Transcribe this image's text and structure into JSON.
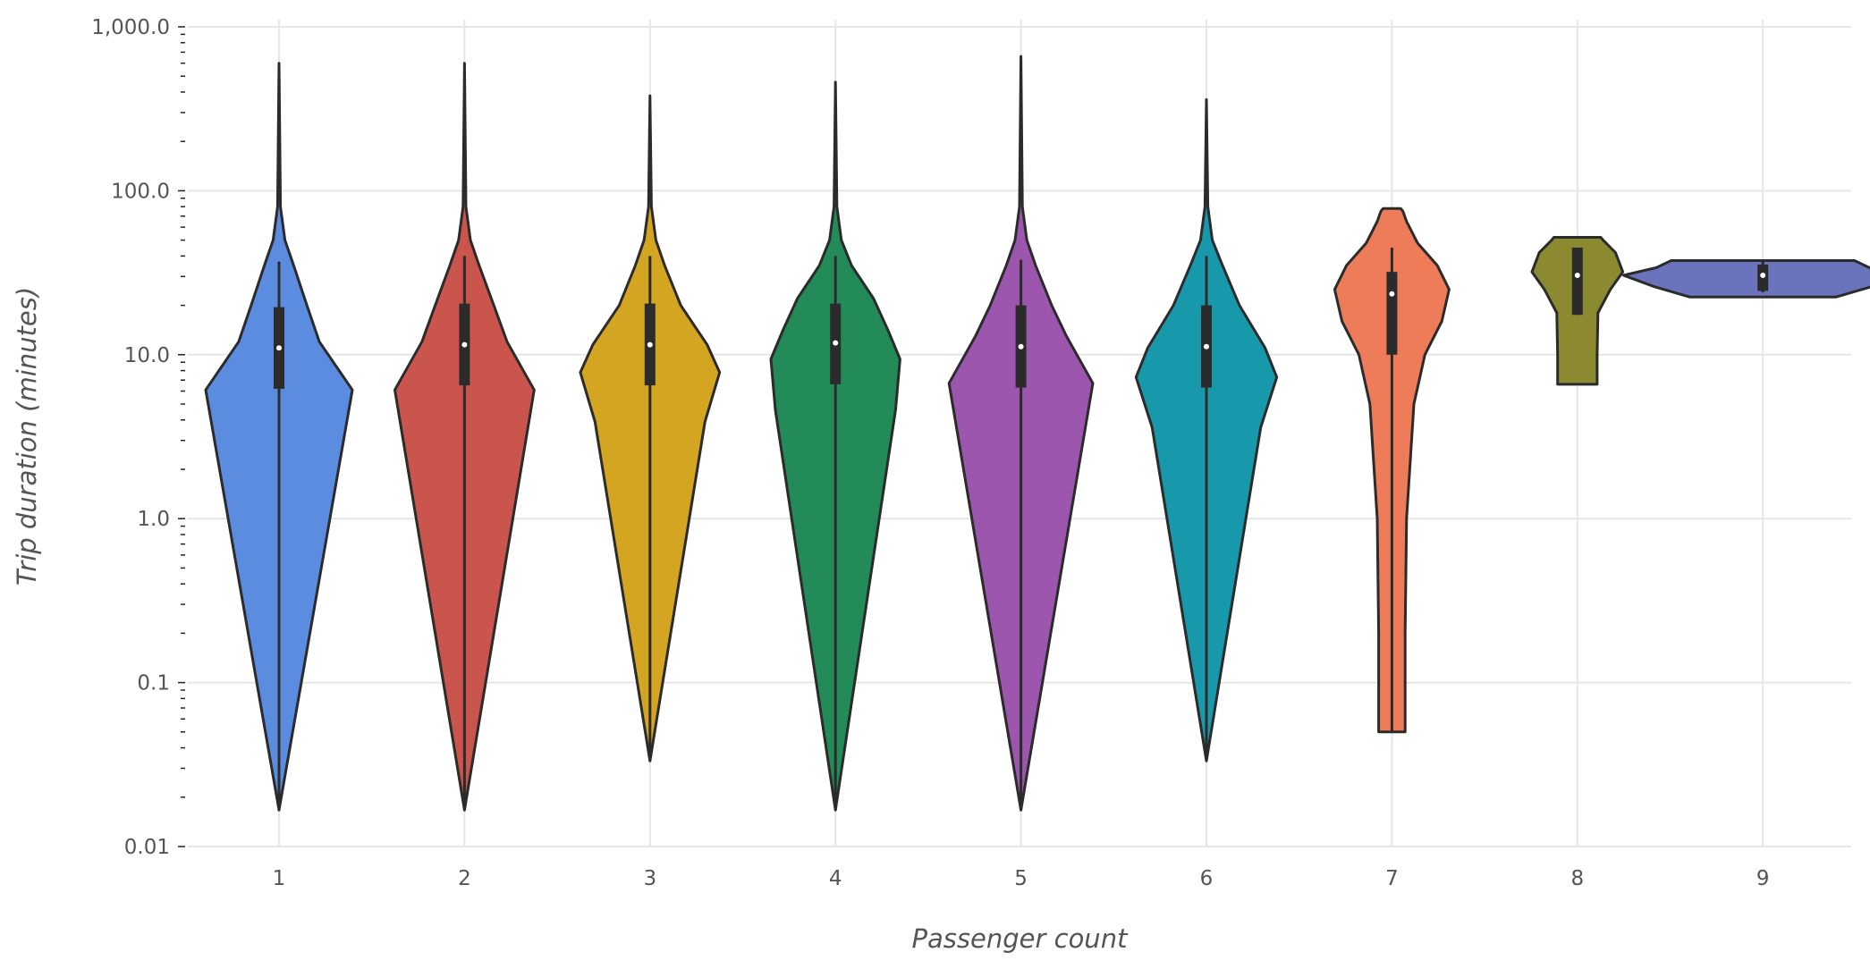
{
  "chart_data": {
    "type": "violin",
    "title": "",
    "xlabel": "Passenger count",
    "ylabel": "Trip duration (minutes)",
    "y_scale": "log",
    "ylim": [
      0.01,
      1000
    ],
    "y_ticks": [
      0.01,
      0.1,
      1,
      10,
      100,
      1000
    ],
    "y_tick_labels": [
      "0.01",
      "0.1",
      "1.0",
      "10.0",
      "100.0",
      "1,000.0"
    ],
    "grid": true,
    "categories": [
      "1",
      "2",
      "3",
      "4",
      "5",
      "6",
      "7",
      "8",
      "9"
    ],
    "colors": [
      "#5b8ce0",
      "#c9554c",
      "#d4a520",
      "#228b57",
      "#9c56ad",
      "#1899ab",
      "#ef7c58",
      "#8c8a30",
      "#6a73bc"
    ],
    "violins": [
      {
        "category": "1",
        "min": 0.0167,
        "q1": 6.2,
        "median": 11.0,
        "q3": 19.5,
        "whisker_low": 0.0167,
        "whisker_high": 37,
        "max": 600,
        "profile": [
          [
            0.0167,
            0.0
          ],
          [
            6.1,
            1.0
          ],
          [
            12,
            0.55
          ],
          [
            20,
            0.38
          ],
          [
            35,
            0.2
          ],
          [
            50,
            0.08
          ],
          [
            80,
            0.02
          ],
          [
            600,
            0.0
          ]
        ]
      },
      {
        "category": "2",
        "min": 0.0167,
        "q1": 6.5,
        "median": 11.5,
        "q3": 20.5,
        "whisker_low": 0.0167,
        "whisker_high": 40,
        "max": 600,
        "profile": [
          [
            0.0167,
            0.0
          ],
          [
            6.1,
            0.95
          ],
          [
            12,
            0.58
          ],
          [
            20,
            0.4
          ],
          [
            35,
            0.2
          ],
          [
            50,
            0.08
          ],
          [
            80,
            0.02
          ],
          [
            600,
            0.0
          ]
        ]
      },
      {
        "category": "3",
        "min": 0.0333,
        "q1": 6.5,
        "median": 11.5,
        "q3": 20.5,
        "whisker_low": 0.0333,
        "whisker_high": 40,
        "max": 380,
        "profile": [
          [
            0.0333,
            0.0
          ],
          [
            3.9,
            0.75
          ],
          [
            7.8,
            0.95
          ],
          [
            11.5,
            0.78
          ],
          [
            20,
            0.42
          ],
          [
            35,
            0.2
          ],
          [
            50,
            0.08
          ],
          [
            80,
            0.02
          ],
          [
            380,
            0.0
          ]
        ]
      },
      {
        "category": "4",
        "min": 0.0167,
        "q1": 6.6,
        "median": 11.8,
        "q3": 20.5,
        "whisker_low": 0.0167,
        "whisker_high": 40,
        "max": 460,
        "profile": [
          [
            0.0167,
            0.0
          ],
          [
            4.6,
            0.82
          ],
          [
            9.4,
            0.88
          ],
          [
            14,
            0.72
          ],
          [
            22,
            0.52
          ],
          [
            35,
            0.22
          ],
          [
            50,
            0.08
          ],
          [
            80,
            0.02
          ],
          [
            460,
            0.0
          ]
        ]
      },
      {
        "category": "5",
        "min": 0.0167,
        "q1": 6.3,
        "median": 11.2,
        "q3": 20.0,
        "whisker_low": 0.0167,
        "whisker_high": 38,
        "max": 660,
        "profile": [
          [
            0.0167,
            0.0
          ],
          [
            6.7,
            0.98
          ],
          [
            13,
            0.62
          ],
          [
            20,
            0.42
          ],
          [
            35,
            0.2
          ],
          [
            50,
            0.08
          ],
          [
            80,
            0.02
          ],
          [
            660,
            0.0
          ]
        ]
      },
      {
        "category": "6",
        "min": 0.0333,
        "q1": 6.3,
        "median": 11.2,
        "q3": 20.0,
        "whisker_low": 0.0333,
        "whisker_high": 40,
        "max": 360,
        "profile": [
          [
            0.0333,
            0.0
          ],
          [
            3.6,
            0.74
          ],
          [
            7.3,
            0.96
          ],
          [
            11,
            0.8
          ],
          [
            20,
            0.45
          ],
          [
            35,
            0.22
          ],
          [
            50,
            0.08
          ],
          [
            80,
            0.02
          ],
          [
            360,
            0.0
          ]
        ]
      },
      {
        "category": "7",
        "min": 0.05,
        "q1": 10.0,
        "median": 23.5,
        "q3": 32.0,
        "whisker_low": 0.05,
        "whisker_high": 45,
        "max": 78,
        "profile": [
          [
            0.05,
            0.18
          ],
          [
            0.2,
            0.18
          ],
          [
            1,
            0.2
          ],
          [
            5,
            0.3
          ],
          [
            10,
            0.45
          ],
          [
            16,
            0.68
          ],
          [
            25,
            0.78
          ],
          [
            35,
            0.62
          ],
          [
            48,
            0.35
          ],
          [
            65,
            0.2
          ],
          [
            75,
            0.15
          ],
          [
            78,
            0.12
          ]
        ]
      },
      {
        "category": "8",
        "min": 6.6,
        "q1": 17.5,
        "median": 30.5,
        "q3": 45.0,
        "whisker_low": 17.5,
        "whisker_high": 45,
        "max": 52,
        "profile": [
          [
            6.6,
            0.27
          ],
          [
            10,
            0.27
          ],
          [
            18,
            0.28
          ],
          [
            25,
            0.45
          ],
          [
            32,
            0.62
          ],
          [
            42,
            0.52
          ],
          [
            50,
            0.35
          ],
          [
            52,
            0.32
          ]
        ]
      },
      {
        "category": "9",
        "min": 22.5,
        "q1": 24.5,
        "median": 30.5,
        "q3": 35.5,
        "whisker_low": 24.0,
        "whisker_high": 37.5,
        "max": 37.5,
        "profile": [
          [
            22.5,
            1.0
          ],
          [
            26,
            1.48
          ],
          [
            30.5,
            1.9
          ],
          [
            34,
            1.45
          ],
          [
            37.5,
            1.25
          ]
        ]
      }
    ]
  }
}
